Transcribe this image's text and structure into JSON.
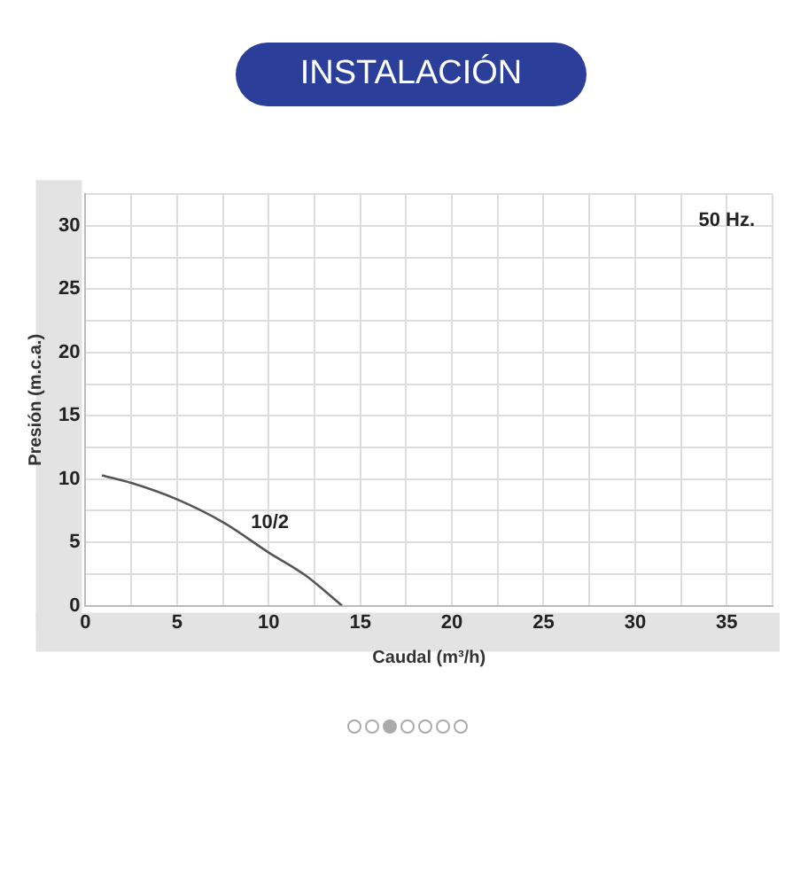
{
  "chart_data": {
    "type": "line",
    "title": "INSTALACIÓN",
    "xlabel": "Caudal (m³/h)",
    "ylabel": "Presión (m.c.a.)",
    "annotations": [
      "50 Hz."
    ],
    "series": [
      {
        "name": "10/2",
        "color": "#555555",
        "x": [
          0.9,
          2.5,
          5,
          7.5,
          10,
          12,
          14
        ],
        "values": [
          10.3,
          9.7,
          8.4,
          6.6,
          4.2,
          2.4,
          0
        ]
      }
    ],
    "xlim": [
      0,
      37.5
    ],
    "ylim": [
      0,
      32.5
    ],
    "xticks": [
      0,
      {
        "value": 2.5,
        "label": null
      },
      5,
      {
        "value": 7.5,
        "label": null
      },
      10,
      {
        "value": 12.5,
        "label": null
      },
      15,
      {
        "value": 17.5,
        "label": null
      },
      20,
      {
        "value": 22.5,
        "label": null
      },
      25,
      {
        "value": 27.5,
        "label": null
      },
      30,
      {
        "value": 32.5,
        "label": null
      },
      35,
      {
        "value": 37.5,
        "label": null
      }
    ],
    "yticks": [
      0,
      {
        "value": 2.5,
        "label": null
      },
      5,
      {
        "value": 7.5,
        "label": null
      },
      10,
      {
        "value": 12.5,
        "label": null
      },
      15,
      {
        "value": 17.5,
        "label": null
      },
      20,
      {
        "value": 22.5,
        "label": null
      },
      25,
      {
        "value": 27.5,
        "label": null
      },
      30,
      {
        "value": 32.5,
        "label": null
      }
    ],
    "grid": true,
    "legend": false,
    "marker": "none",
    "line_style": "solid"
  }
}
